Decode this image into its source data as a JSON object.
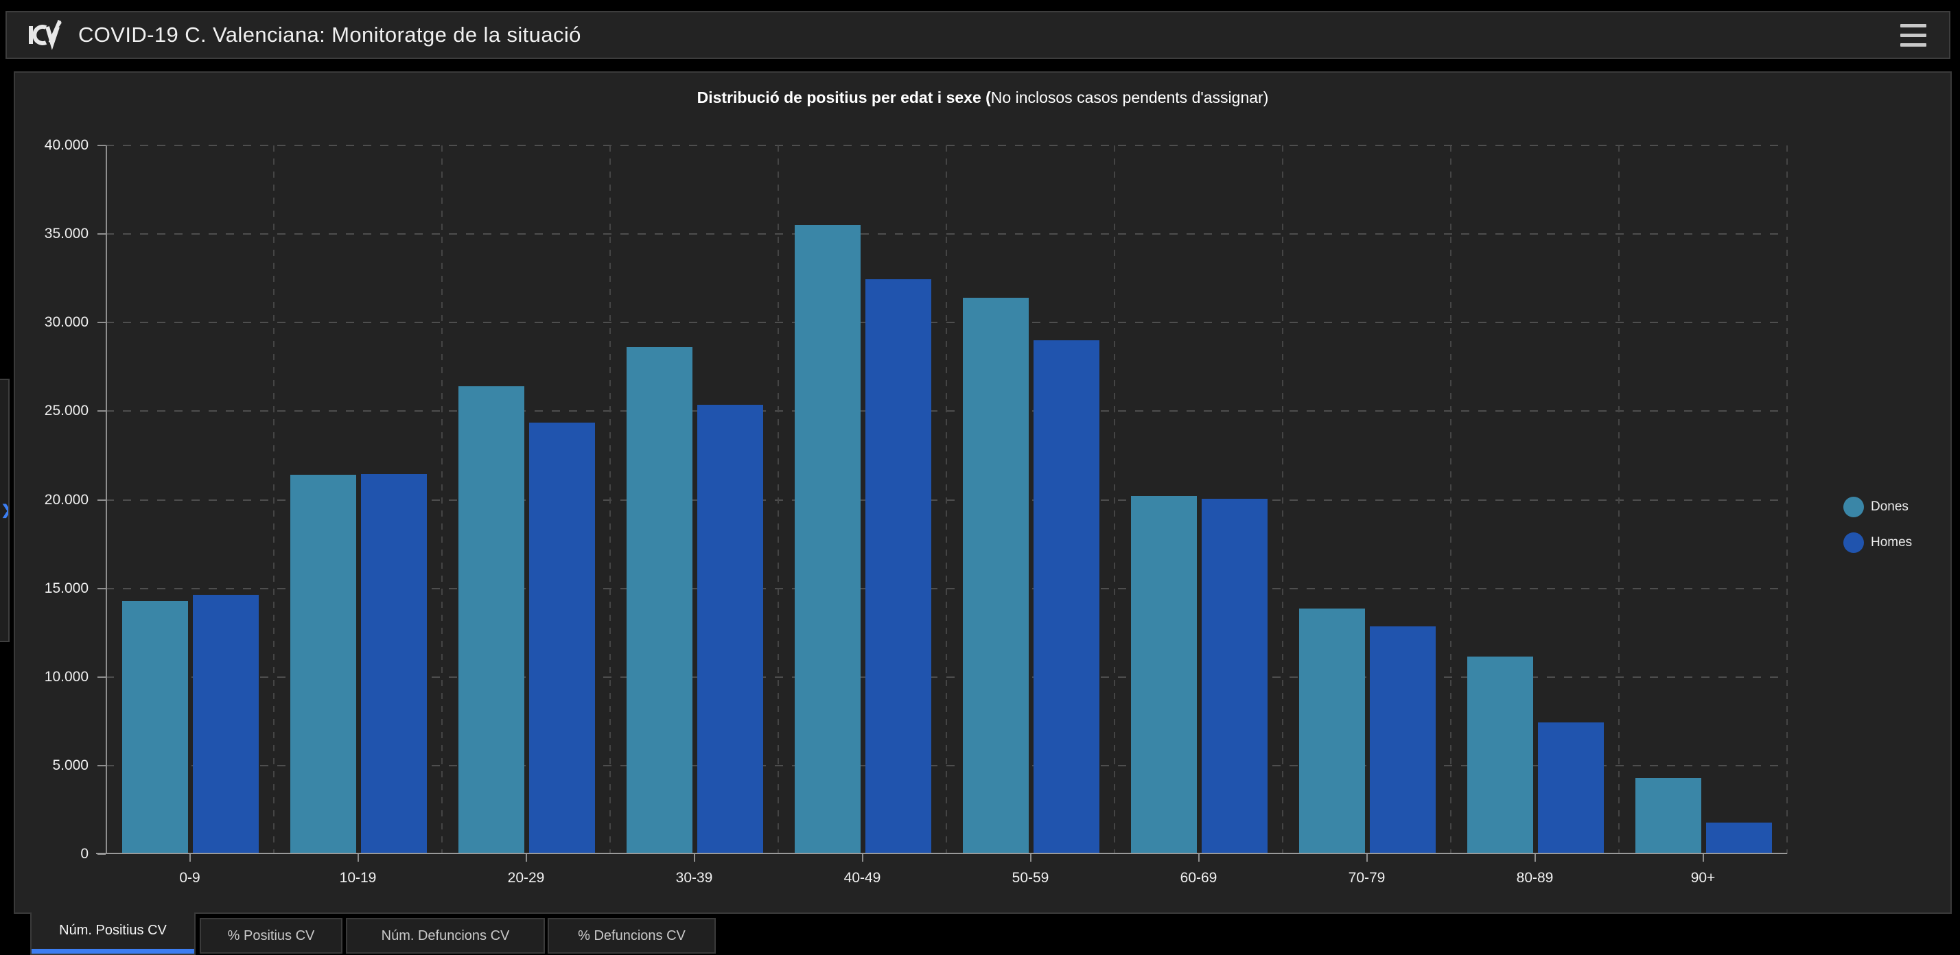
{
  "header": {
    "title": "COVID-19 C. Valenciana: Monitoratge de la situació"
  },
  "colors": {
    "accent_blue": "#3c7ef2",
    "dones": "#3a86a7",
    "homes": "#2054ae",
    "panel_bg": "#232323",
    "page_bg": "#000000"
  },
  "chart_data": {
    "type": "bar",
    "title_bold": "Distribució de positius per edat i sexe (",
    "title_note": "No inclosos casos pendents d'assignar)",
    "categories": [
      "0-9",
      "10-19",
      "20-29",
      "30-39",
      "40-49",
      "50-59",
      "60-69",
      "70-79",
      "80-89",
      "90+"
    ],
    "series": [
      {
        "name": "Dones",
        "color": "#3a86a7",
        "values": [
          14300,
          21400,
          26400,
          28600,
          35500,
          31400,
          20200,
          13850,
          11150,
          4300
        ]
      },
      {
        "name": "Homes",
        "color": "#2054ae",
        "values": [
          14650,
          21450,
          24350,
          25350,
          32450,
          29000,
          20050,
          12850,
          7450,
          1800
        ]
      }
    ],
    "ylim": [
      0,
      40000
    ],
    "ytick_step": 5000,
    "ytick_labels": [
      "0",
      "5.000",
      "10.000",
      "15.000",
      "20.000",
      "25.000",
      "30.000",
      "35.000",
      "40.000"
    ],
    "grid": "dashed",
    "legend_position": "right",
    "xlabel": "",
    "ylabel": ""
  },
  "tabs": [
    {
      "label": "Núm. Positius CV",
      "active": true
    },
    {
      "label": "% Positius CV",
      "active": false
    },
    {
      "label": "Núm. Defuncions CV",
      "active": false
    },
    {
      "label": "% Defuncions CV",
      "active": false
    }
  ]
}
